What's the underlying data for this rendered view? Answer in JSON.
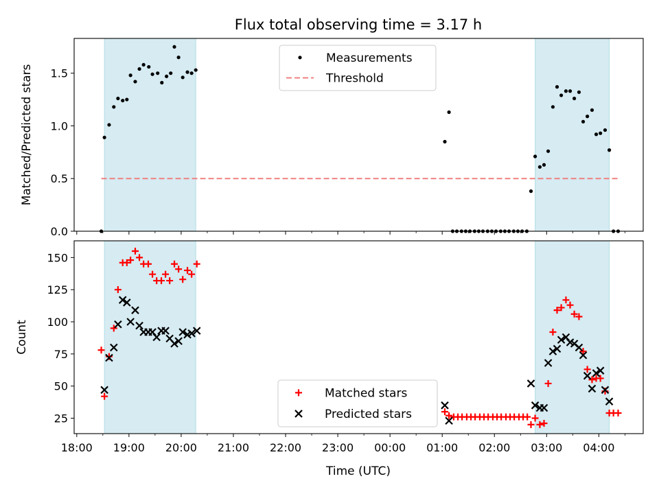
{
  "figure": {
    "title": "Flux total observing time = 3.17 h",
    "xlabel": "Time (UTC)",
    "x_ticks": [
      "18:00",
      "19:00",
      "20:00",
      "21:00",
      "22:00",
      "23:00",
      "00:00",
      "01:00",
      "02:00",
      "03:00",
      "04:00"
    ]
  },
  "chart_data": [
    {
      "type": "scatter",
      "panel": "top",
      "ylabel": "Matched/Predicted stars",
      "xlim": [
        17.95,
        28.85
      ],
      "ylim": [
        0,
        1.83
      ],
      "y_ticks": [
        "0.0",
        "0.5",
        "1.0",
        "1.5"
      ],
      "legend": {
        "placement": "upper-center",
        "entries": [
          "Measurements",
          "Threshold"
        ]
      },
      "threshold": {
        "name": "Threshold",
        "value": 0.5,
        "x_range": [
          18.47,
          28.37
        ],
        "color": "#f08080"
      },
      "observing_windows": [
        [
          18.53,
          20.28
        ],
        [
          26.78,
          28.2
        ]
      ],
      "series": [
        {
          "name": "Measurements",
          "marker": "dot",
          "color": "#000000",
          "points": [
            [
              18.47,
              0.0
            ],
            [
              18.53,
              0.89
            ],
            [
              18.62,
              1.01
            ],
            [
              18.71,
              1.18
            ],
            [
              18.79,
              1.26
            ],
            [
              18.88,
              1.24
            ],
            [
              18.96,
              1.25
            ],
            [
              19.03,
              1.48
            ],
            [
              19.12,
              1.42
            ],
            [
              19.2,
              1.54
            ],
            [
              19.28,
              1.58
            ],
            [
              19.38,
              1.56
            ],
            [
              19.45,
              1.49
            ],
            [
              19.55,
              1.5
            ],
            [
              19.63,
              1.41
            ],
            [
              19.72,
              1.47
            ],
            [
              19.8,
              1.5
            ],
            [
              19.87,
              1.75
            ],
            [
              19.95,
              1.65
            ],
            [
              20.03,
              1.46
            ],
            [
              20.12,
              1.51
            ],
            [
              20.2,
              1.5
            ],
            [
              20.28,
              1.53
            ],
            [
              25.05,
              0.85
            ],
            [
              25.13,
              1.13
            ],
            [
              25.2,
              0.0
            ],
            [
              25.28,
              0.0
            ],
            [
              25.37,
              0.0
            ],
            [
              25.45,
              0.0
            ],
            [
              25.53,
              0.0
            ],
            [
              25.62,
              0.0
            ],
            [
              25.7,
              0.0
            ],
            [
              25.78,
              0.0
            ],
            [
              25.87,
              0.0
            ],
            [
              25.95,
              0.0
            ],
            [
              26.03,
              0.0
            ],
            [
              26.12,
              0.0
            ],
            [
              26.2,
              0.0
            ],
            [
              26.28,
              0.0
            ],
            [
              26.37,
              0.0
            ],
            [
              26.45,
              0.0
            ],
            [
              26.53,
              0.0
            ],
            [
              26.62,
              0.0
            ],
            [
              26.7,
              0.38
            ],
            [
              26.78,
              0.71
            ],
            [
              26.87,
              0.61
            ],
            [
              26.95,
              0.63
            ],
            [
              27.03,
              0.76
            ],
            [
              27.12,
              1.18
            ],
            [
              27.2,
              1.37
            ],
            [
              27.28,
              1.29
            ],
            [
              27.37,
              1.33
            ],
            [
              27.45,
              1.33
            ],
            [
              27.53,
              1.26
            ],
            [
              27.62,
              1.32
            ],
            [
              27.7,
              1.04
            ],
            [
              27.78,
              1.09
            ],
            [
              27.87,
              1.15
            ],
            [
              27.95,
              0.92
            ],
            [
              28.03,
              0.93
            ],
            [
              28.12,
              0.96
            ],
            [
              28.2,
              0.77
            ],
            [
              28.28,
              0.0
            ],
            [
              28.37,
              0.0
            ]
          ]
        }
      ]
    },
    {
      "type": "scatter",
      "panel": "bottom",
      "ylabel": "Count",
      "xlim": [
        17.95,
        28.85
      ],
      "ylim": [
        13,
        163
      ],
      "y_ticks": [
        "25",
        "50",
        "75",
        "100",
        "125",
        "150"
      ],
      "legend": {
        "placement": "lower-center",
        "entries": [
          "Matched stars",
          "Predicted stars"
        ]
      },
      "observing_windows": [
        [
          18.53,
          20.28
        ],
        [
          26.78,
          28.2
        ]
      ],
      "series": [
        {
          "name": "Matched stars",
          "marker": "plus",
          "color": "#ff0000",
          "points": [
            [
              18.47,
              78
            ],
            [
              18.53,
              42
            ],
            [
              18.62,
              73
            ],
            [
              18.71,
              95
            ],
            [
              18.79,
              125
            ],
            [
              18.88,
              146
            ],
            [
              18.96,
              146
            ],
            [
              19.03,
              148
            ],
            [
              19.12,
              155
            ],
            [
              19.2,
              150
            ],
            [
              19.28,
              145
            ],
            [
              19.37,
              145
            ],
            [
              19.45,
              137
            ],
            [
              19.53,
              132
            ],
            [
              19.62,
              132
            ],
            [
              19.7,
              137
            ],
            [
              19.78,
              132
            ],
            [
              19.87,
              145
            ],
            [
              19.95,
              141
            ],
            [
              20.03,
              133
            ],
            [
              20.12,
              140
            ],
            [
              20.2,
              137
            ],
            [
              20.3,
              145
            ],
            [
              25.05,
              30
            ],
            [
              25.13,
              27
            ],
            [
              25.22,
              26
            ],
            [
              25.3,
              26
            ],
            [
              25.38,
              26
            ],
            [
              25.47,
              26
            ],
            [
              25.55,
              26
            ],
            [
              25.63,
              26
            ],
            [
              25.72,
              26
            ],
            [
              25.8,
              26
            ],
            [
              25.88,
              26
            ],
            [
              25.97,
              26
            ],
            [
              26.05,
              26
            ],
            [
              26.13,
              26
            ],
            [
              26.22,
              26
            ],
            [
              26.3,
              26
            ],
            [
              26.38,
              26
            ],
            [
              26.47,
              26
            ],
            [
              26.55,
              26
            ],
            [
              26.63,
              26
            ],
            [
              26.7,
              20
            ],
            [
              26.78,
              25
            ],
            [
              26.87,
              20
            ],
            [
              26.95,
              21
            ],
            [
              27.03,
              52
            ],
            [
              27.12,
              92
            ],
            [
              27.2,
              109
            ],
            [
              27.28,
              111
            ],
            [
              27.37,
              117
            ],
            [
              27.45,
              113
            ],
            [
              27.53,
              106
            ],
            [
              27.62,
              104
            ],
            [
              27.7,
              77
            ],
            [
              27.78,
              63
            ],
            [
              27.87,
              55
            ],
            [
              27.95,
              56
            ],
            [
              28.03,
              56
            ],
            [
              28.12,
              46
            ],
            [
              28.2,
              29
            ],
            [
              28.28,
              29
            ],
            [
              28.37,
              29
            ]
          ]
        },
        {
          "name": "Predicted stars",
          "marker": "x",
          "color": "#000000",
          "points": [
            [
              18.53,
              47
            ],
            [
              18.62,
              72
            ],
            [
              18.71,
              80
            ],
            [
              18.79,
              98
            ],
            [
              18.88,
              117
            ],
            [
              18.96,
              115
            ],
            [
              19.03,
              100
            ],
            [
              19.12,
              109
            ],
            [
              19.2,
              97
            ],
            [
              19.28,
              92
            ],
            [
              19.37,
              92
            ],
            [
              19.45,
              92
            ],
            [
              19.53,
              88
            ],
            [
              19.62,
              93
            ],
            [
              19.7,
              93
            ],
            [
              19.78,
              87
            ],
            [
              19.87,
              83
            ],
            [
              19.95,
              85
            ],
            [
              20.03,
              92
            ],
            [
              20.12,
              90
            ],
            [
              20.2,
              91
            ],
            [
              20.3,
              93
            ],
            [
              25.05,
              35
            ],
            [
              25.13,
              23
            ],
            [
              26.7,
              52
            ],
            [
              26.78,
              35
            ],
            [
              26.87,
              33
            ],
            [
              26.95,
              33
            ],
            [
              27.03,
              68
            ],
            [
              27.12,
              77
            ],
            [
              27.2,
              79
            ],
            [
              27.28,
              86
            ],
            [
              27.37,
              88
            ],
            [
              27.45,
              84
            ],
            [
              27.53,
              83
            ],
            [
              27.62,
              80
            ],
            [
              27.7,
              74
            ],
            [
              27.78,
              58
            ],
            [
              27.87,
              48
            ],
            [
              27.95,
              60
            ],
            [
              28.03,
              62
            ],
            [
              28.12,
              47
            ],
            [
              28.2,
              38
            ]
          ]
        }
      ]
    }
  ]
}
